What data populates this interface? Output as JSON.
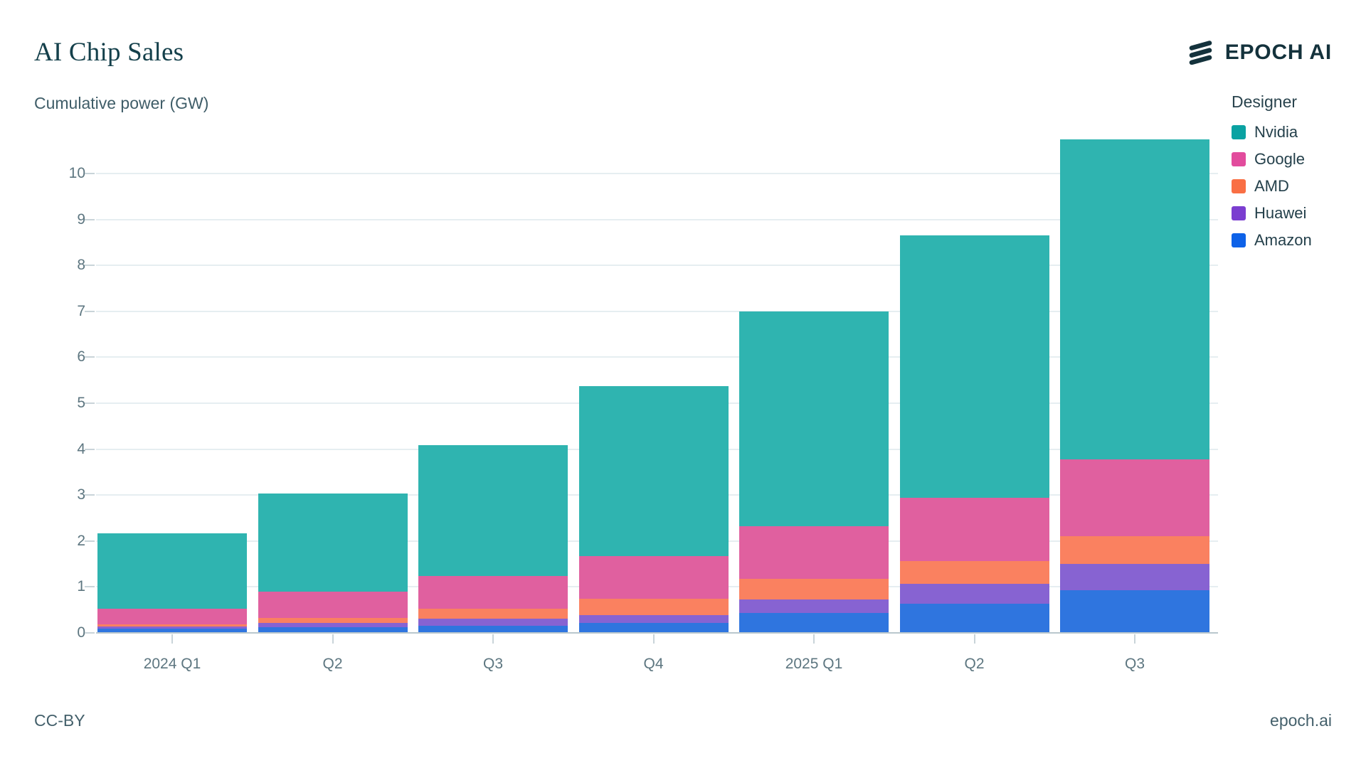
{
  "header": {
    "title": "AI Chip Sales",
    "subtitle": "Cumulative power (GW)",
    "logo_text": "EPOCH AI"
  },
  "footer": {
    "license": "CC-BY",
    "site": "epoch.ai"
  },
  "colors": {
    "brand_dark": "#14323c",
    "grid": "#e6eef1",
    "axis": "#b9c7cd",
    "tick_label": "#5d7680"
  },
  "chart_data": {
    "type": "bar",
    "subtype": "stacked",
    "title": "AI Chip Sales",
    "ylabel": "Cumulative power (GW)",
    "xlabel": "",
    "grid": true,
    "legend_title": "Designer",
    "legend_position": "right",
    "categories": [
      "2024 Q1",
      "Q2",
      "Q3",
      "Q4",
      "2025 Q1",
      "Q2",
      "Q3"
    ],
    "yticks": [
      0,
      1,
      2,
      3,
      4,
      5,
      6,
      7,
      8,
      9,
      10
    ],
    "ylim": [
      0,
      11.4
    ],
    "stack_note": "series listed in legend order; stacked bottom-to-top in reverse (Amazon at bottom, Nvidia on top)",
    "series": [
      {
        "name": "Nvidia",
        "color": "#2fb4b0",
        "swatch_color": "#0aa2a2",
        "values": [
          1.65,
          2.14,
          2.85,
          3.7,
          4.68,
          5.71,
          6.96
        ]
      },
      {
        "name": "Google",
        "color": "#e0609f",
        "swatch_color": "#e24c9d",
        "values": [
          0.34,
          0.58,
          0.71,
          0.92,
          1.15,
          1.37,
          1.68
        ]
      },
      {
        "name": "AMD",
        "color": "#fa8160",
        "swatch_color": "#f96f44",
        "values": [
          0.04,
          0.11,
          0.22,
          0.36,
          0.44,
          0.5,
          0.6
        ]
      },
      {
        "name": "Huawei",
        "color": "#8763d2",
        "swatch_color": "#7b3ed0",
        "values": [
          0.05,
          0.08,
          0.15,
          0.18,
          0.3,
          0.44,
          0.57
        ]
      },
      {
        "name": "Amazon",
        "color": "#2f75df",
        "swatch_color": "#0e62e8",
        "values": [
          0.09,
          0.13,
          0.16,
          0.21,
          0.43,
          0.63,
          0.93
        ]
      }
    ],
    "totals": [
      2.17,
      3.04,
      4.09,
      5.37,
      7.0,
      8.65,
      10.74
    ]
  }
}
